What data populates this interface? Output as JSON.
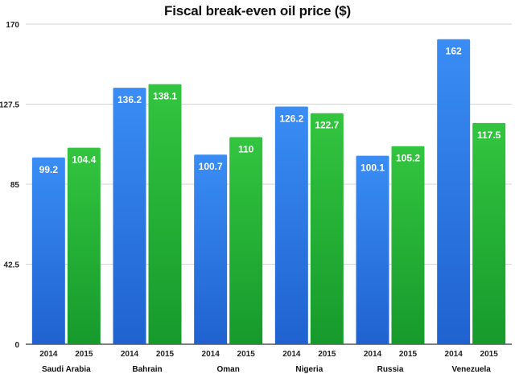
{
  "chart_data": {
    "type": "bar",
    "title": "Fiscal break-even oil price ($)",
    "xlabel": "",
    "ylabel": "",
    "categories": [
      "Saudi Arabia",
      "Bahrain",
      "Oman",
      "Nigeria",
      "Russia",
      "Venezuela"
    ],
    "series": [
      {
        "name": "2014",
        "color": "#2f7fe6",
        "values": [
          99.2,
          136.2,
          100.7,
          126.2,
          100.1,
          162
        ],
        "labels": [
          "99.2",
          "136.2",
          "100.7",
          "126.2",
          "100.1",
          "162"
        ]
      },
      {
        "name": "2015",
        "color": "#22b33a",
        "values": [
          104.4,
          138.1,
          110,
          122.7,
          105.2,
          117.5
        ],
        "labels": [
          "104.4",
          "138.1",
          "110",
          "122.7",
          "105.2",
          "117.5"
        ]
      }
    ],
    "ylim": [
      0,
      170
    ],
    "yticks": [
      0,
      42.5,
      85,
      127.5,
      170
    ],
    "ytick_labels": [
      "0",
      "42.5",
      "85",
      "127.5",
      "170"
    ],
    "grid": true,
    "legend": "none"
  }
}
